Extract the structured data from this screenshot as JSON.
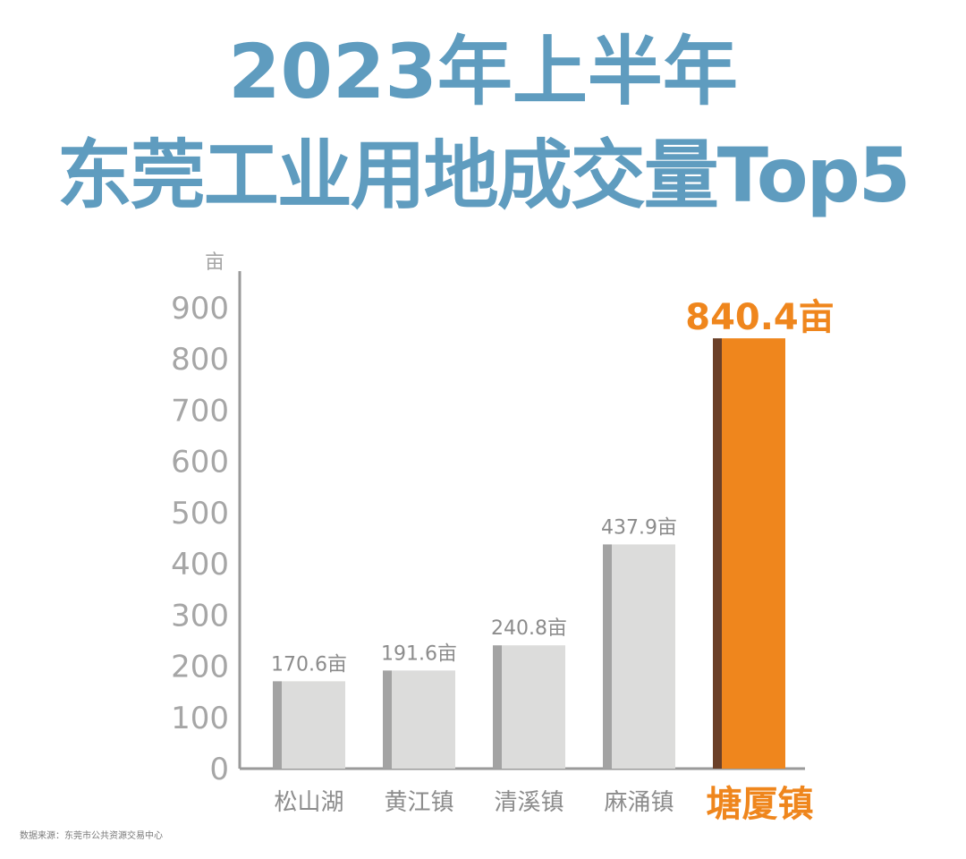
{
  "title_line1": "2023年上半年",
  "title_line2": "东莞工业用地成交量Top5",
  "source": "数据来源：东莞市公共资源交易中心",
  "colors": {
    "title": "#5f9cbf",
    "bar": "#dcdcdb",
    "bar_edge": "#a3a3a3",
    "highlight": "#ef861d",
    "highlight_edge": "#6b4028",
    "axis": "#9a9a9a",
    "tick_text": "#a6a6a6",
    "label_text": "#8c8c8c"
  },
  "chart_data": {
    "type": "bar",
    "title": "2023年上半年 东莞工业用地成交量Top5",
    "unit": "亩",
    "ylim": [
      0,
      900
    ],
    "yticks": [
      0,
      100,
      200,
      300,
      400,
      500,
      600,
      700,
      800,
      900
    ],
    "categories": [
      "松山湖",
      "黄江镇",
      "清溪镇",
      "麻涌镇",
      "塘厦镇"
    ],
    "values": [
      170.6,
      191.6,
      240.8,
      437.9,
      840.4
    ],
    "value_labels": [
      "170.6亩",
      "191.6亩",
      "240.8亩",
      "437.9亩",
      "840.4亩"
    ],
    "highlight": "塘厦镇",
    "grid": false,
    "legend": "none"
  }
}
